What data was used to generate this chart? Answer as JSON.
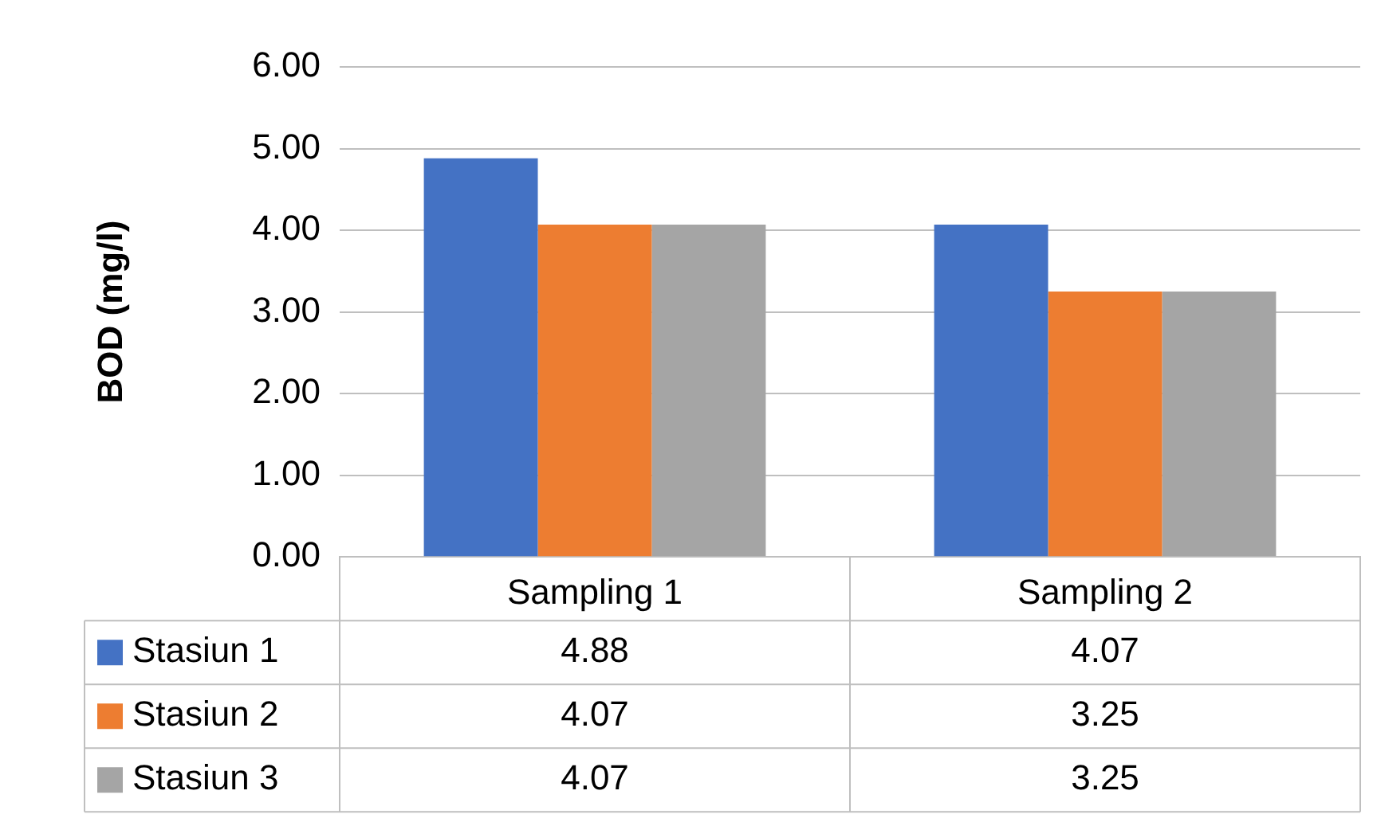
{
  "chart_data": {
    "type": "bar",
    "ylabel": "BOD (mg/l)",
    "categories": [
      "Sampling 1",
      "Sampling 2"
    ],
    "series": [
      {
        "name": "Stasiun 1",
        "color": "#4472c4",
        "values": [
          4.88,
          4.07
        ]
      },
      {
        "name": "Stasiun 2",
        "color": "#ed7d31",
        "values": [
          4.07,
          3.25
        ]
      },
      {
        "name": "Stasiun 3",
        "color": "#a5a5a5",
        "values": [
          4.07,
          3.25
        ]
      }
    ],
    "ylim": [
      0,
      6
    ],
    "yticks": [
      {
        "value": 0,
        "label": "0.00"
      },
      {
        "value": 1,
        "label": "1.00"
      },
      {
        "value": 2,
        "label": "2.00"
      },
      {
        "value": 3,
        "label": "3.00"
      },
      {
        "value": 4,
        "label": "4.00"
      },
      {
        "value": 5,
        "label": "5.00"
      },
      {
        "value": 6,
        "label": "6.00"
      }
    ],
    "grid": "y",
    "legend": "bottom",
    "data_labels": true
  }
}
